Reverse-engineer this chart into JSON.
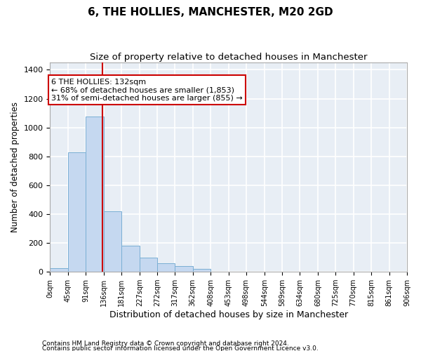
{
  "title": "6, THE HOLLIES, MANCHESTER, M20 2GD",
  "subtitle": "Size of property relative to detached houses in Manchester",
  "xlabel": "Distribution of detached houses by size in Manchester",
  "ylabel": "Number of detached properties",
  "footnote1": "Contains HM Land Registry data © Crown copyright and database right 2024.",
  "footnote2": "Contains public sector information licensed under the Open Government Licence v3.0.",
  "bar_edges": [
    0,
    45,
    91,
    136,
    181,
    227,
    272,
    317,
    362,
    408,
    453,
    498,
    544,
    589,
    634,
    680,
    725,
    770,
    815,
    861,
    906
  ],
  "bar_heights": [
    25,
    830,
    1075,
    420,
    180,
    100,
    58,
    38,
    20,
    0,
    0,
    0,
    0,
    0,
    0,
    0,
    0,
    0,
    0,
    0
  ],
  "bar_color": "#c5d8f0",
  "bar_edge_color": "#7aafd4",
  "property_size": 132,
  "vline_color": "#cc0000",
  "annotation_line1": "6 THE HOLLIES: 132sqm",
  "annotation_line2": "← 68% of detached houses are smaller (1,853)",
  "annotation_line3": "31% of semi-detached houses are larger (855) →",
  "annotation_box_color": "white",
  "annotation_box_edge": "#cc0000",
  "ylim": [
    0,
    1450
  ],
  "yticks": [
    0,
    200,
    400,
    600,
    800,
    1000,
    1200,
    1400
  ],
  "background_color": "#e8eef5",
  "grid_color": "white",
  "title_fontsize": 11,
  "subtitle_fontsize": 9.5,
  "xlabel_fontsize": 9,
  "ylabel_fontsize": 8.5
}
